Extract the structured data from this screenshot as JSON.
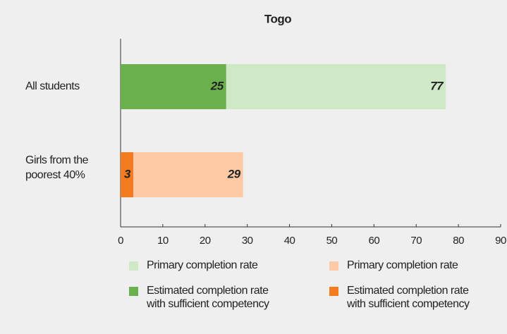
{
  "chart_data": {
    "type": "bar",
    "orientation": "horizontal",
    "overlap": true,
    "title": "Togo",
    "categories": [
      "All students",
      "Girls from the poorest 40%"
    ],
    "series": [
      {
        "name": "Primary completion rate",
        "color": "#cfe9c6",
        "values": [
          77,
          null
        ]
      },
      {
        "name": "Estimated completion rate with sufficient competency",
        "color": "#6ab04c",
        "values": [
          25,
          null
        ]
      },
      {
        "name": "Primary completion rate",
        "color": "#fdcaa5",
        "values": [
          null,
          29
        ]
      },
      {
        "name": "Estimated completion rate with sufficient competency",
        "color": "#f47b20",
        "values": [
          null,
          3
        ]
      }
    ],
    "xlim": [
      0,
      90
    ],
    "xticks": [
      0,
      10,
      20,
      30,
      40,
      50,
      60,
      70,
      80,
      90
    ],
    "grid": false
  }
}
